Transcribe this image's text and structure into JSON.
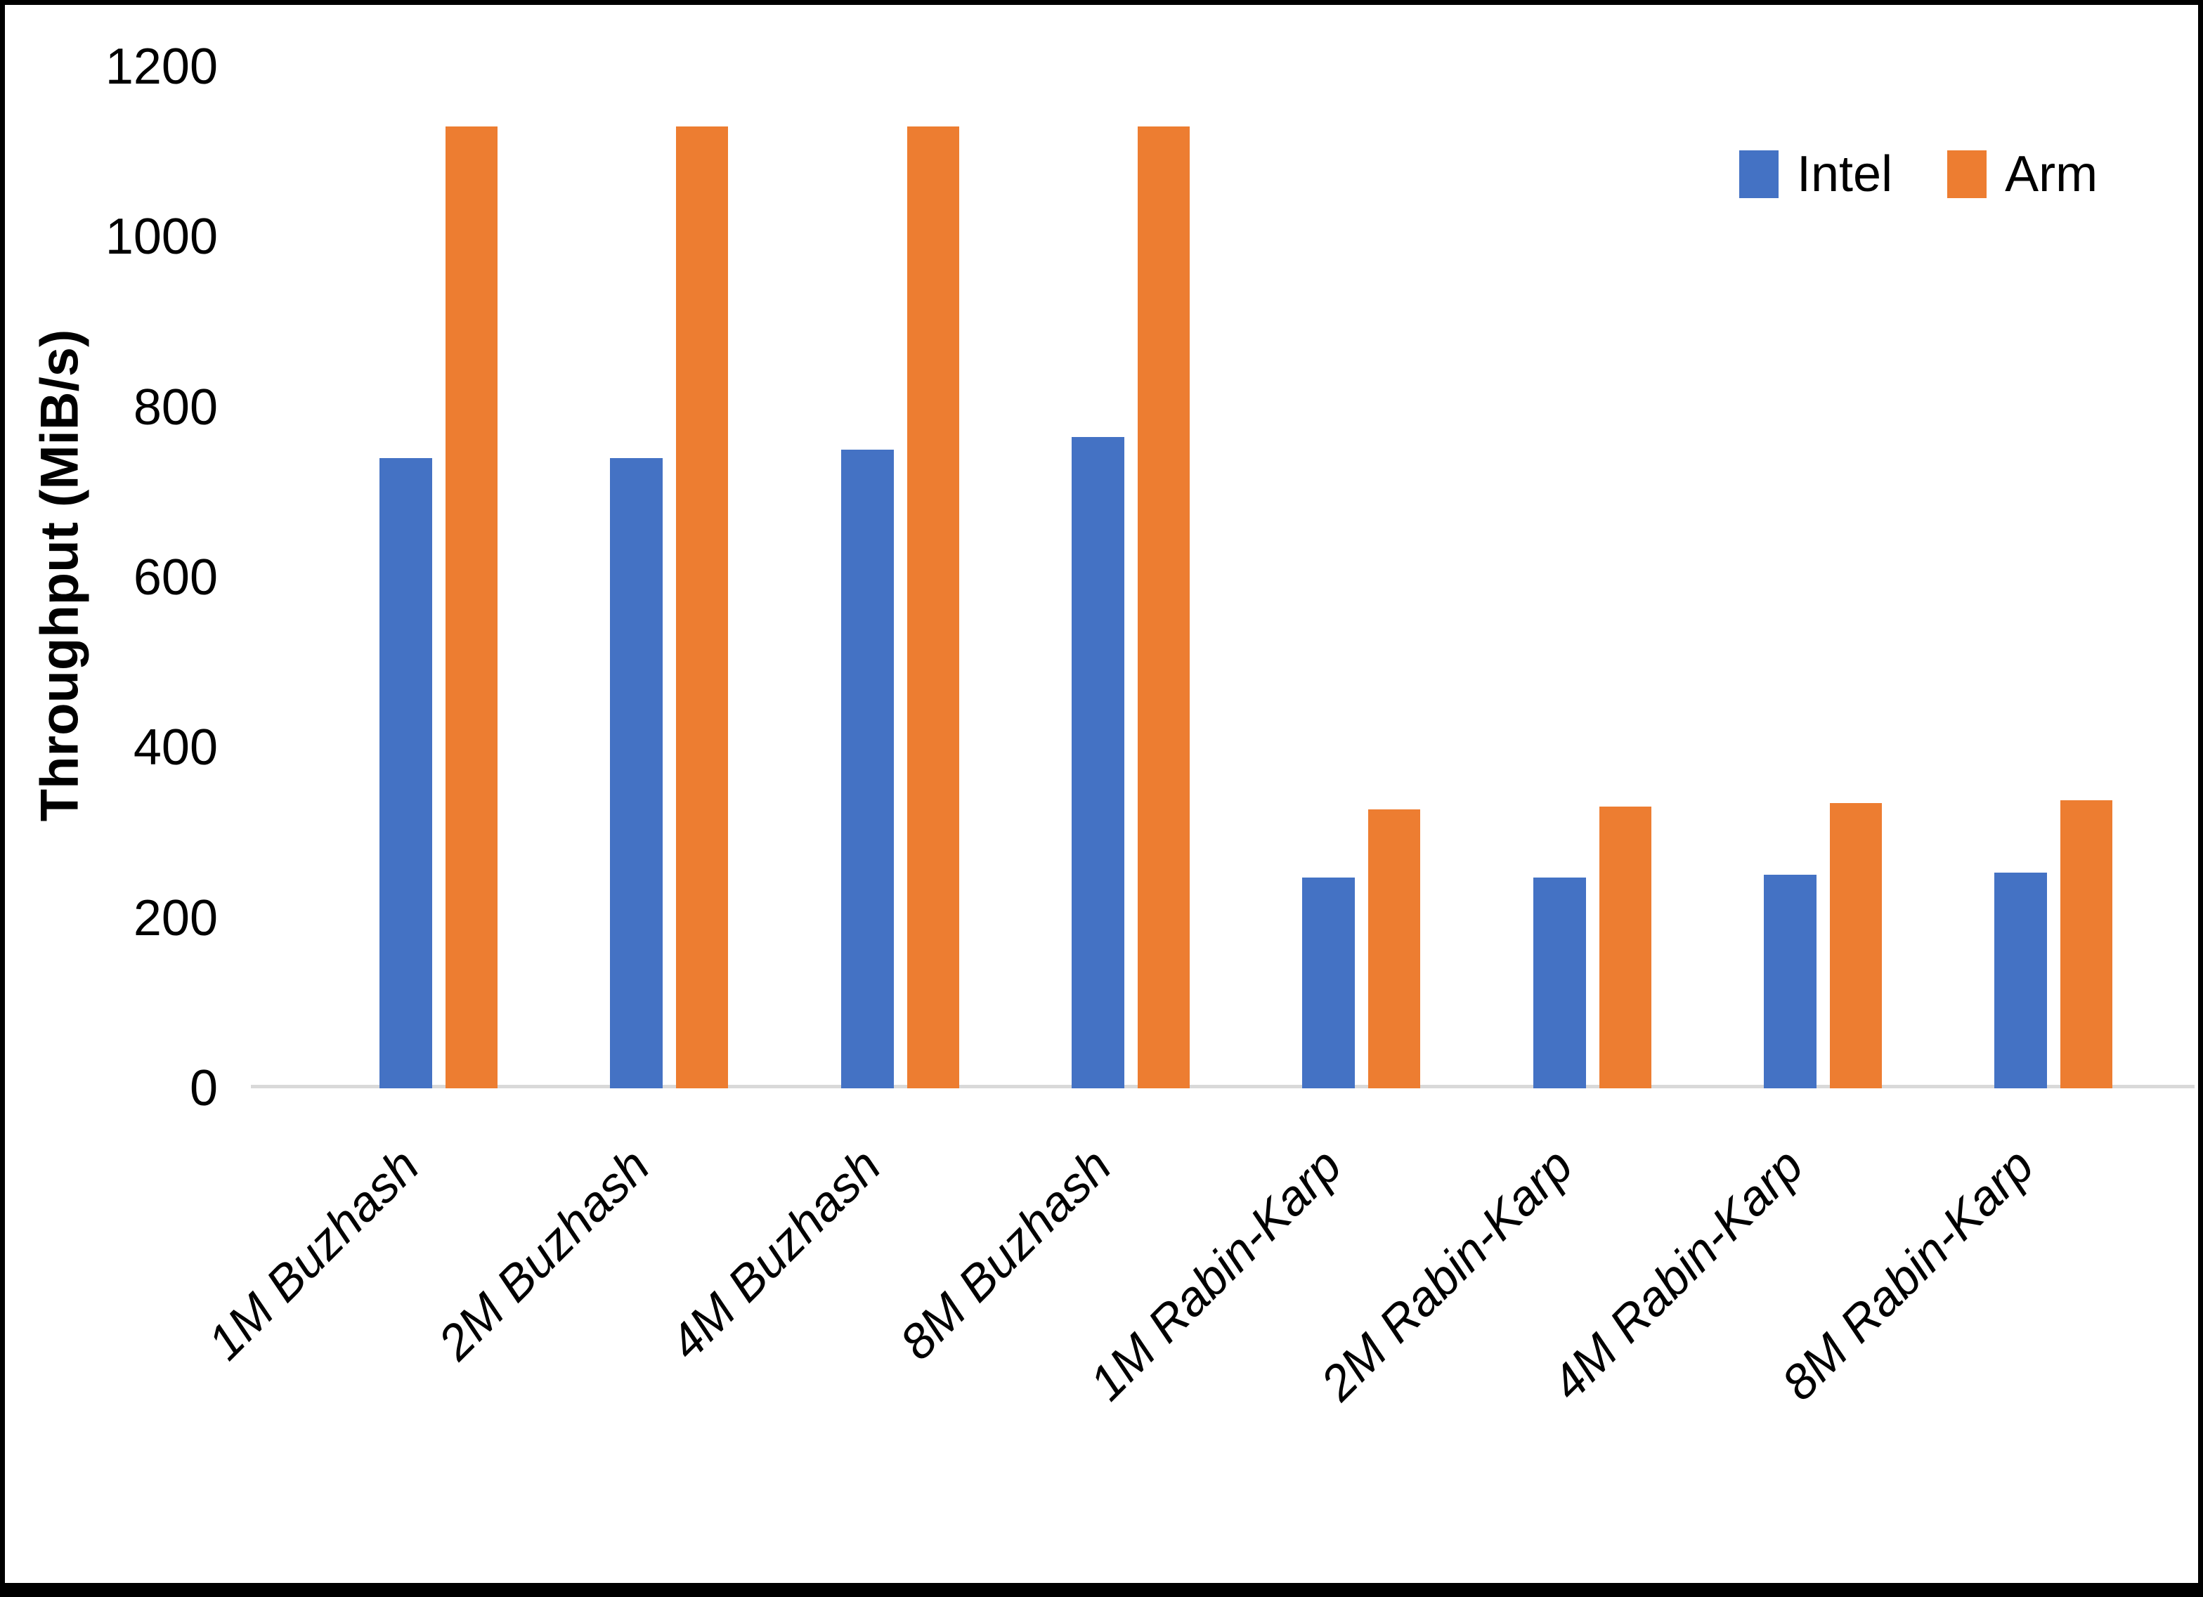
{
  "chart_data": {
    "type": "bar",
    "title": "",
    "ylabel": "Throughput (MiB/s)",
    "xlabel": "",
    "ylim": [
      0,
      1200
    ],
    "yticks": [
      0,
      200,
      400,
      600,
      800,
      1000,
      1200
    ],
    "grid": false,
    "legend_position": "top-right",
    "categories": [
      "1M Buzhash",
      "2M Buzhash",
      "4M Buzhash",
      "8M Buzhash",
      "1M Rabin-Karp",
      "2M Rabin-Karp",
      "4M Rabin-Karp",
      "8M Rabin-Karp"
    ],
    "series": [
      {
        "name": "Intel",
        "color": "#4472C4",
        "values": [
          740,
          740,
          750,
          765,
          248,
          248,
          251,
          253
        ]
      },
      {
        "name": "Arm",
        "color": "#ED7D31",
        "values": [
          1130,
          1130,
          1130,
          1130,
          328,
          331,
          335,
          338
        ]
      }
    ],
    "axis_line_color": "#D9D9D9",
    "text_color": "#000000"
  }
}
